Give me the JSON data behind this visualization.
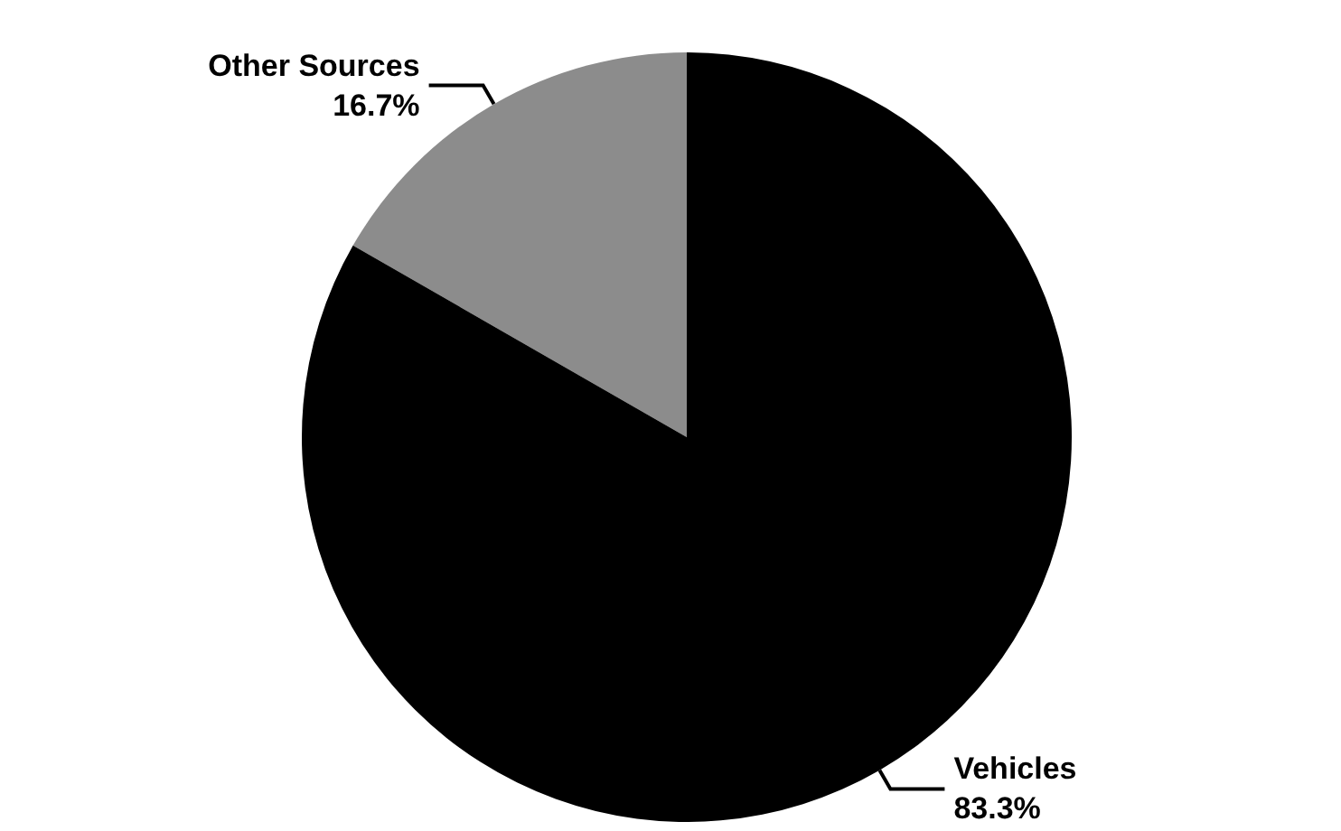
{
  "chart_data": {
    "type": "pie",
    "categories": [
      "Other Sources",
      "Vehicles"
    ],
    "values": [
      16.7,
      83.3
    ],
    "colors": [
      "#8c8c8c",
      "#000000"
    ],
    "value_labels": [
      "16.7%",
      "83.3%"
    ]
  }
}
